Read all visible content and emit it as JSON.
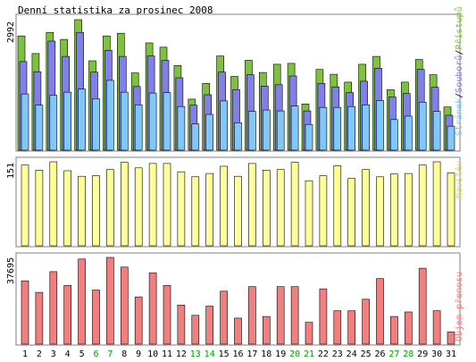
{
  "title": "Denní statistika za prosinec 2008",
  "day_labels": [
    "1",
    "2",
    "3",
    "4",
    "5",
    "6",
    "7",
    "8",
    "9",
    "10",
    "11",
    "12",
    "13",
    "14",
    "15",
    "16",
    "17",
    "18",
    "19",
    "20",
    "21",
    "22",
    "23",
    "24",
    "25",
    "26",
    "27",
    "28",
    "29",
    "30",
    "31"
  ],
  "weekend_days": [
    "6",
    "7",
    "13",
    "14",
    "20",
    "21",
    "27",
    "28"
  ],
  "colors": {
    "access": "#80c040",
    "files": "#8080e8",
    "pages": "#80c8f8",
    "visits": "#ffff99",
    "volume": "#f08080",
    "weekday_label": "#000000",
    "weekend_label": "#00a000",
    "frame": "#808080"
  },
  "chart_data": [
    {
      "type": "bar",
      "name": "hits",
      "ymax_label": "2992",
      "ylim": [
        0,
        2992
      ],
      "legend": {
        "pages": "Stránek",
        "files": "Souborů",
        "access": "Přístupů",
        "sep": "/"
      },
      "series": [
        {
          "name": "Přístupů",
          "values": [
            2620,
            2215,
            2700,
            2540,
            2992,
            2050,
            2620,
            2680,
            1770,
            2460,
            2360,
            1940,
            1170,
            1530,
            2160,
            1690,
            2060,
            1780,
            1970,
            1990,
            1060,
            1850,
            1740,
            1560,
            1970,
            2150,
            1390,
            1560,
            2080,
            1730,
            990
          ]
        },
        {
          "name": "Souborů",
          "values": [
            2030,
            1800,
            2500,
            2150,
            2700,
            1790,
            2290,
            2150,
            1460,
            2160,
            2060,
            1660,
            1030,
            1270,
            1790,
            1390,
            1730,
            1470,
            1500,
            1700,
            900,
            1530,
            1450,
            1320,
            1580,
            1880,
            1220,
            1300,
            1850,
            1440,
            800
          ]
        },
        {
          "name": "Stránek",
          "values": [
            1290,
            1030,
            1260,
            1330,
            1400,
            1180,
            1600,
            1330,
            1040,
            1310,
            1320,
            1000,
            600,
            820,
            1130,
            630,
            890,
            920,
            900,
            1010,
            590,
            980,
            980,
            1000,
            1040,
            1140,
            700,
            780,
            1100,
            890,
            550
          ]
        }
      ]
    },
    {
      "type": "bar",
      "name": "visits",
      "ymax_label": "151",
      "ylim": [
        0,
        151
      ],
      "legend_label": "Návštěv",
      "series": [
        {
          "name": "Návštěv",
          "values": [
            145,
            136,
            151,
            135,
            125,
            126,
            137,
            150,
            140,
            148,
            148,
            133,
            124,
            130,
            143,
            125,
            148,
            136,
            137,
            150,
            117,
            126,
            144,
            121,
            137,
            124,
            129,
            130,
            145,
            151,
            131
          ]
        }
      ]
    },
    {
      "type": "bar",
      "name": "volume",
      "ymax_label": "37695",
      "ylim": [
        0,
        37695
      ],
      "legend_label": "Objem přenosu",
      "series": [
        {
          "name": "Objem přenosu",
          "values": [
            27500,
            22500,
            31500,
            25500,
            37000,
            23500,
            37695,
            33500,
            20500,
            31000,
            25500,
            17000,
            12500,
            16500,
            23000,
            11300,
            25000,
            12000,
            25000,
            25000,
            9500,
            24000,
            14500,
            14500,
            19500,
            28500,
            12000,
            14000,
            33000,
            14500,
            5300
          ]
        }
      ]
    }
  ]
}
